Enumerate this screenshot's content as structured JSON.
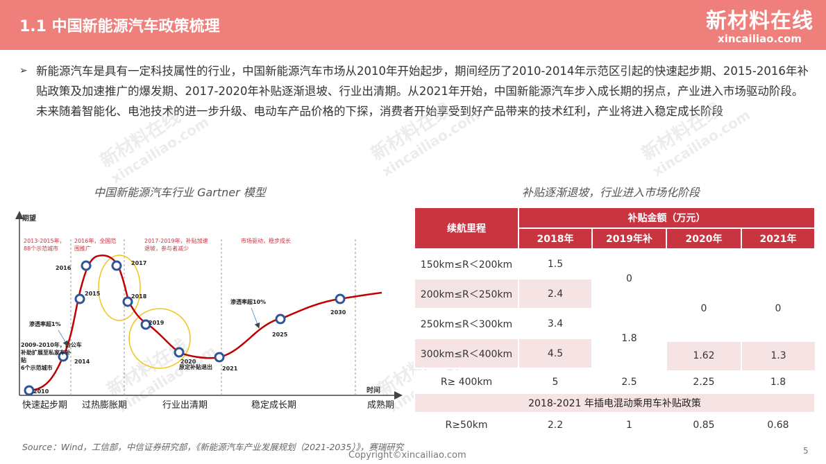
{
  "header": {
    "title": "1.1 中国新能源汽车政策梳理",
    "logo_cn": "新材料在线",
    "logo_en": "xincailiao.com"
  },
  "intro": "新能源汽车是具有一定科技属性的行业，中国新能源汽车市场从2010年开始起步，期间经历了2010-2014年示范区引起的快速起步期、2015-2016年补贴政策及加速推广的爆发期、2017-2020年补贴逐渐退坡、行业出清期。从2021年开始，中国新能源汽车步入成长期的拐点，产业进入市场驱动阶段。未来随着智能化、电池技术的进一步升级、电动车产品价格的下探，消费者开始享受到好产品带来的技术红利，产业将进入稳定成长阶段",
  "left_caption": "中国新能源汽车行业 Gartner 模型",
  "right_caption": "补贴逐渐退坡，行业进入市场化阶段",
  "gartner": {
    "y_axis": "期望",
    "x_axis": "时间",
    "notes": [
      "2013-2015年，",
      "88个示范城市",
      "2016年，全国范",
      "围推广",
      "2017-2019年，补贴加速",
      "退坡，参与者减少",
      "市场驱动，稳步成长"
    ],
    "points": [
      "2010",
      "2014",
      "2015",
      "2016",
      "2017",
      "2018",
      "2019",
      "2020",
      "2021",
      "2025",
      "2030"
    ],
    "labels": {
      "pen1": "渗透率超1%",
      "pen10": "渗透率超10%",
      "early1": "2009-2010年，由公车",
      "early2": "补助扩展至私家车补",
      "early3": "贴",
      "early4": "6个示范城市",
      "exit": "原定补贴退出"
    },
    "stages": [
      "快速起步期",
      "过热膨胀期",
      "行业出清期",
      "稳定成长期",
      "成熟期"
    ]
  },
  "table": {
    "col_range": "续航里程",
    "col_amount": "补贴金额（万元）",
    "years": [
      "2018年",
      "2019年补",
      "2020年",
      "2021年"
    ],
    "rows": [
      {
        "range": "150km≤R＜200km",
        "y2018": "1.5"
      },
      {
        "range": "200km≤R＜250km",
        "y2018": "2.4"
      },
      {
        "range": "250km≤R＜300km",
        "y2018": "3.4"
      },
      {
        "range": "300km≤R＜400km",
        "y2018": "4.5"
      },
      {
        "range": "R≥ 400km",
        "y2018": "5",
        "y2019": "2.5",
        "y2020": "2.25",
        "y2021": "1.8"
      }
    ],
    "merged": {
      "y2019_a": "0",
      "y2019_b": "1.8",
      "y2020_a": "0",
      "y2021_a": "0",
      "y2020_300": "1.62",
      "y2021_300": "1.3"
    },
    "policy_title": "2018-2021 年插电混动乘用车补贴政策",
    "phev": {
      "range": "R≥50km",
      "y2018": "2.2",
      "y2019": "1",
      "y2020": "0.85",
      "y2021": "0.68"
    }
  },
  "source": "Source：Wind，工信部，中信证券研究部，《新能源汽车产业发展规划（2021-2035）》，赛瑞研究",
  "copyright": "Copyright©xincailiao.com",
  "page": "5",
  "watermark_cn": "新材料在线",
  "watermark_en": "xincailiao.com"
}
